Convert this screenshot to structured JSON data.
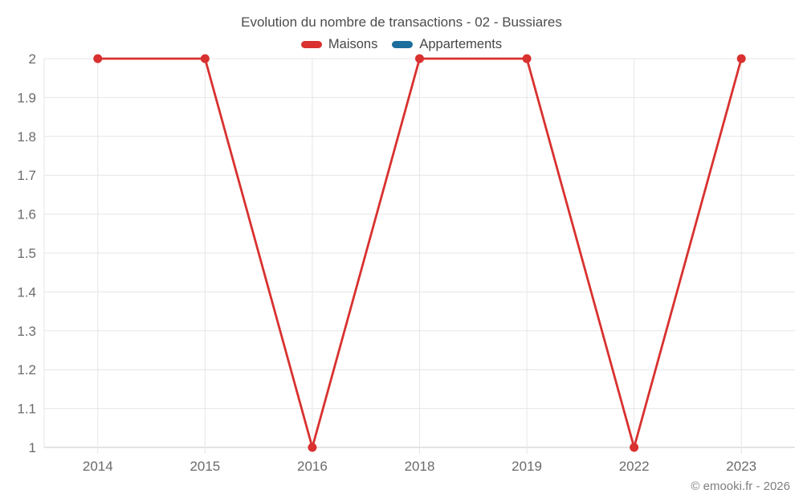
{
  "title": "Evolution du nombre de transactions - 02 - Bussiares",
  "watermark": "© emooki.fr - 2026",
  "chart_data": {
    "type": "line",
    "title": "Evolution du nombre de transactions - 02 - Bussiares",
    "categories": [
      "2014",
      "2015",
      "2016",
      "2018",
      "2019",
      "2022",
      "2023"
    ],
    "series": [
      {
        "name": "Maisons",
        "color": "#d8312f",
        "values": [
          2,
          2,
          1,
          2,
          2,
          1,
          2
        ]
      },
      {
        "name": "Appartements",
        "color": "#1c6e9c",
        "values": []
      }
    ],
    "xlabel": "",
    "ylabel": "",
    "ylim": [
      1,
      2
    ],
    "ytick_step": 0.1,
    "ytick_labels": [
      "2",
      "1.9",
      "1.8",
      "1.7",
      "1.6",
      "1.5",
      "1.4",
      "1.3",
      "1.2",
      "1.1",
      "1"
    ],
    "grid": true,
    "legend_position": "top",
    "colors": {
      "grid": "#e6e6e6",
      "axis_line": "#c9c9c9",
      "axis_labels": "#6b6b6b",
      "title": "#4c4c4c"
    }
  }
}
